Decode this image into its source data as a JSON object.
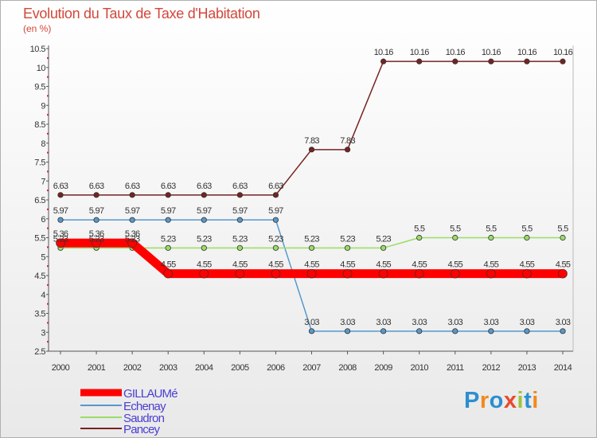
{
  "title": "Evolution du Taux de Taxe d'Habitation",
  "subtitle": "(en %)",
  "logo": {
    "text": "Proxiti",
    "letter_colors": [
      "#2b8fd0",
      "#f08a1c",
      "#2b8fd0",
      "#e84a2c",
      "#9cc43a",
      "#2b8fd0",
      "#f08a1c"
    ]
  },
  "chart_data": {
    "type": "line",
    "title": "Evolution du Taux de Taxe d'Habitation",
    "ylabel": "(en %)",
    "xlabel": "",
    "x": [
      "2000",
      "2001",
      "2002",
      "2003",
      "2004",
      "2005",
      "2006",
      "2007",
      "2008",
      "2009",
      "2010",
      "2011",
      "2012",
      "2013",
      "2014"
    ],
    "ylim": [
      2.5,
      10.5
    ],
    "yticks": [
      "2.5",
      "3",
      "3.5",
      "4",
      "4.5",
      "5",
      "5.5",
      "6",
      "6.5",
      "7",
      "7.5",
      "8",
      "8.5",
      "9",
      "9.5",
      "10",
      "10.5"
    ],
    "grid": false,
    "legend_position": "bottom-left",
    "series": [
      {
        "name": "GILLAUMé",
        "color": "#ff0000",
        "values": [
          5.36,
          5.36,
          5.36,
          4.55,
          4.55,
          4.55,
          4.55,
          4.55,
          4.55,
          4.55,
          4.55,
          4.55,
          4.55,
          4.55,
          4.55
        ],
        "labels": [
          "5.36",
          "5.36",
          "5.36",
          "4.55",
          "4.55",
          "4.55",
          "4.55",
          "4.55",
          "4.55",
          "4.55",
          "4.55",
          "4.55",
          "4.55",
          "4.55",
          "4.55"
        ]
      },
      {
        "name": "Echenay",
        "color": "#5599cc",
        "values": [
          5.97,
          5.97,
          5.97,
          5.97,
          5.97,
          5.97,
          5.97,
          3.03,
          3.03,
          3.03,
          3.03,
          3.03,
          3.03,
          3.03,
          3.03
        ],
        "labels": [
          "5.97",
          "5.97",
          "5.97",
          "5.97",
          "5.97",
          "5.97",
          "5.97",
          "3.03",
          "3.03",
          "3.03",
          "3.03",
          "3.03",
          "3.03",
          "3.03",
          "3.03"
        ]
      },
      {
        "name": "Saudron",
        "color": "#99dd66",
        "values": [
          5.23,
          5.23,
          5.23,
          5.23,
          5.23,
          5.23,
          5.23,
          5.23,
          5.23,
          5.23,
          5.5,
          5.5,
          5.5,
          5.5,
          5.5
        ],
        "labels": [
          "5.23",
          "5.23",
          "5.23",
          "5.23",
          "5.23",
          "5.23",
          "5.23",
          "5.23",
          "5.23",
          "5.23",
          "5.5",
          "5.5",
          "5.5",
          "5.5",
          "5.5"
        ]
      },
      {
        "name": "Pancey",
        "color": "#772222",
        "values": [
          6.63,
          6.63,
          6.63,
          6.63,
          6.63,
          6.63,
          6.63,
          7.83,
          7.83,
          10.16,
          10.16,
          10.16,
          10.16,
          10.16,
          10.16
        ],
        "labels": [
          "6.63",
          "6.63",
          "6.63",
          "6.63",
          "6.63",
          "6.63",
          "6.63",
          "7.83",
          "7.83",
          "10.16",
          "10.16",
          "10.16",
          "10.16",
          "10.16",
          "10.16"
        ]
      }
    ]
  }
}
